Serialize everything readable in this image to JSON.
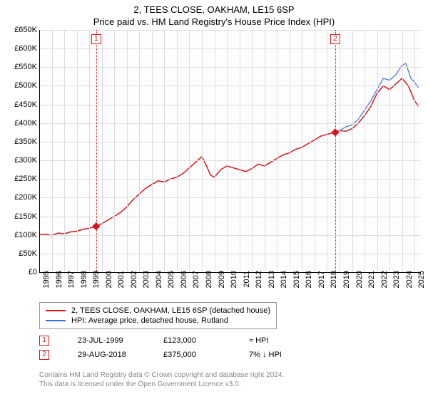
{
  "title_line1": "2, TEES CLOSE, OAKHAM, LE15 6SP",
  "title_line2": "Price paid vs. HM Land Registry's House Price Index (HPI)",
  "chart": {
    "type": "line",
    "background_color": "#fdfdfd",
    "grid_color": "#dddddd",
    "ylim": [
      0,
      650000
    ],
    "ytick_step": 50000,
    "ytick_labels": [
      "£0",
      "£50K",
      "£100K",
      "£150K",
      "£200K",
      "£250K",
      "£300K",
      "£350K",
      "£400K",
      "£450K",
      "£500K",
      "£550K",
      "£600K",
      "£650K"
    ],
    "xlim": [
      1995,
      2025.5
    ],
    "xtick_step": 1,
    "xtick_labels": [
      "1995",
      "1996",
      "1997",
      "1998",
      "1999",
      "2000",
      "2001",
      "2002",
      "2003",
      "2004",
      "2005",
      "2006",
      "2007",
      "2008",
      "2009",
      "2010",
      "2011",
      "2012",
      "2013",
      "2014",
      "2015",
      "2016",
      "2017",
      "2018",
      "2019",
      "2020",
      "2021",
      "2022",
      "2023",
      "2024",
      "2025"
    ],
    "label_fontsize": 11,
    "title_fontsize": 13,
    "series": [
      {
        "name": "2, TEES CLOSE, OAKHAM, LE15 6SP (detached house)",
        "color": "#d11919",
        "width": 1.5,
        "points": [
          [
            1995.0,
            100000
          ],
          [
            1995.5,
            102000
          ],
          [
            1996.0,
            98000
          ],
          [
            1996.5,
            105000
          ],
          [
            1997.0,
            103000
          ],
          [
            1997.5,
            108000
          ],
          [
            1998.0,
            110000
          ],
          [
            1998.5,
            115000
          ],
          [
            1999.0,
            118000
          ],
          [
            1999.55,
            123000
          ],
          [
            2000.0,
            130000
          ],
          [
            2000.5,
            140000
          ],
          [
            2001.0,
            150000
          ],
          [
            2001.5,
            160000
          ],
          [
            2002.0,
            175000
          ],
          [
            2002.5,
            195000
          ],
          [
            2003.0,
            210000
          ],
          [
            2003.5,
            225000
          ],
          [
            2004.0,
            235000
          ],
          [
            2004.5,
            245000
          ],
          [
            2005.0,
            242000
          ],
          [
            2005.5,
            250000
          ],
          [
            2006.0,
            255000
          ],
          [
            2006.5,
            265000
          ],
          [
            2007.0,
            280000
          ],
          [
            2007.5,
            295000
          ],
          [
            2008.0,
            310000
          ],
          [
            2008.3,
            290000
          ],
          [
            2008.7,
            260000
          ],
          [
            2009.0,
            255000
          ],
          [
            2009.5,
            275000
          ],
          [
            2010.0,
            285000
          ],
          [
            2010.5,
            280000
          ],
          [
            2011.0,
            275000
          ],
          [
            2011.5,
            270000
          ],
          [
            2012.0,
            278000
          ],
          [
            2012.5,
            290000
          ],
          [
            2013.0,
            285000
          ],
          [
            2013.5,
            295000
          ],
          [
            2014.0,
            305000
          ],
          [
            2014.5,
            315000
          ],
          [
            2015.0,
            320000
          ],
          [
            2015.5,
            330000
          ],
          [
            2016.0,
            335000
          ],
          [
            2016.5,
            345000
          ],
          [
            2017.0,
            355000
          ],
          [
            2017.5,
            365000
          ],
          [
            2018.0,
            370000
          ],
          [
            2018.66,
            375000
          ],
          [
            2019.0,
            380000
          ],
          [
            2019.5,
            378000
          ],
          [
            2020.0,
            385000
          ],
          [
            2020.5,
            400000
          ],
          [
            2021.0,
            420000
          ],
          [
            2021.5,
            445000
          ],
          [
            2022.0,
            480000
          ],
          [
            2022.5,
            500000
          ],
          [
            2023.0,
            490000
          ],
          [
            2023.5,
            505000
          ],
          [
            2024.0,
            520000
          ],
          [
            2024.5,
            500000
          ],
          [
            2025.0,
            460000
          ],
          [
            2025.3,
            445000
          ]
        ]
      },
      {
        "name": "HPI: Average price, detached house, Rutland",
        "color": "#3a6fd8",
        "width": 1.2,
        "points": [
          [
            2018.66,
            375000
          ],
          [
            2019.0,
            380000
          ],
          [
            2019.5,
            390000
          ],
          [
            2020.0,
            395000
          ],
          [
            2020.5,
            410000
          ],
          [
            2021.0,
            435000
          ],
          [
            2021.5,
            460000
          ],
          [
            2022.0,
            490000
          ],
          [
            2022.5,
            520000
          ],
          [
            2023.0,
            515000
          ],
          [
            2023.5,
            530000
          ],
          [
            2024.0,
            555000
          ],
          [
            2024.3,
            560000
          ],
          [
            2024.7,
            520000
          ],
          [
            2025.0,
            510000
          ],
          [
            2025.3,
            495000
          ]
        ]
      }
    ],
    "sale_markers": [
      {
        "index": 1,
        "x": 1999.55,
        "y": 123000,
        "color": "#d11919"
      },
      {
        "index": 2,
        "x": 2018.66,
        "y": 375000,
        "color": "#d11919"
      }
    ],
    "event_lines": [
      {
        "index": 1,
        "x": 1999.55,
        "color": "#d11919"
      },
      {
        "index": 2,
        "x": 2018.66,
        "color": "#d11919"
      }
    ]
  },
  "legend": {
    "items": [
      {
        "label": "2, TEES CLOSE, OAKHAM, LE15 6SP (detached house)",
        "color": "#d11919"
      },
      {
        "label": "HPI: Average price, detached house, Rutland",
        "color": "#3a6fd8"
      }
    ]
  },
  "sales": [
    {
      "marker": "1",
      "color": "#d11919",
      "date": "23-JUL-1999",
      "price": "£123,000",
      "delta": "≈ HPI"
    },
    {
      "marker": "2",
      "color": "#d11919",
      "date": "29-AUG-2018",
      "price": "£375,000",
      "delta": "7% ↓ HPI"
    }
  ],
  "footnote_line1": "Contains HM Land Registry data © Crown copyright and database right 2024.",
  "footnote_line2": "This data is licensed under the Open Government Licence v3.0."
}
